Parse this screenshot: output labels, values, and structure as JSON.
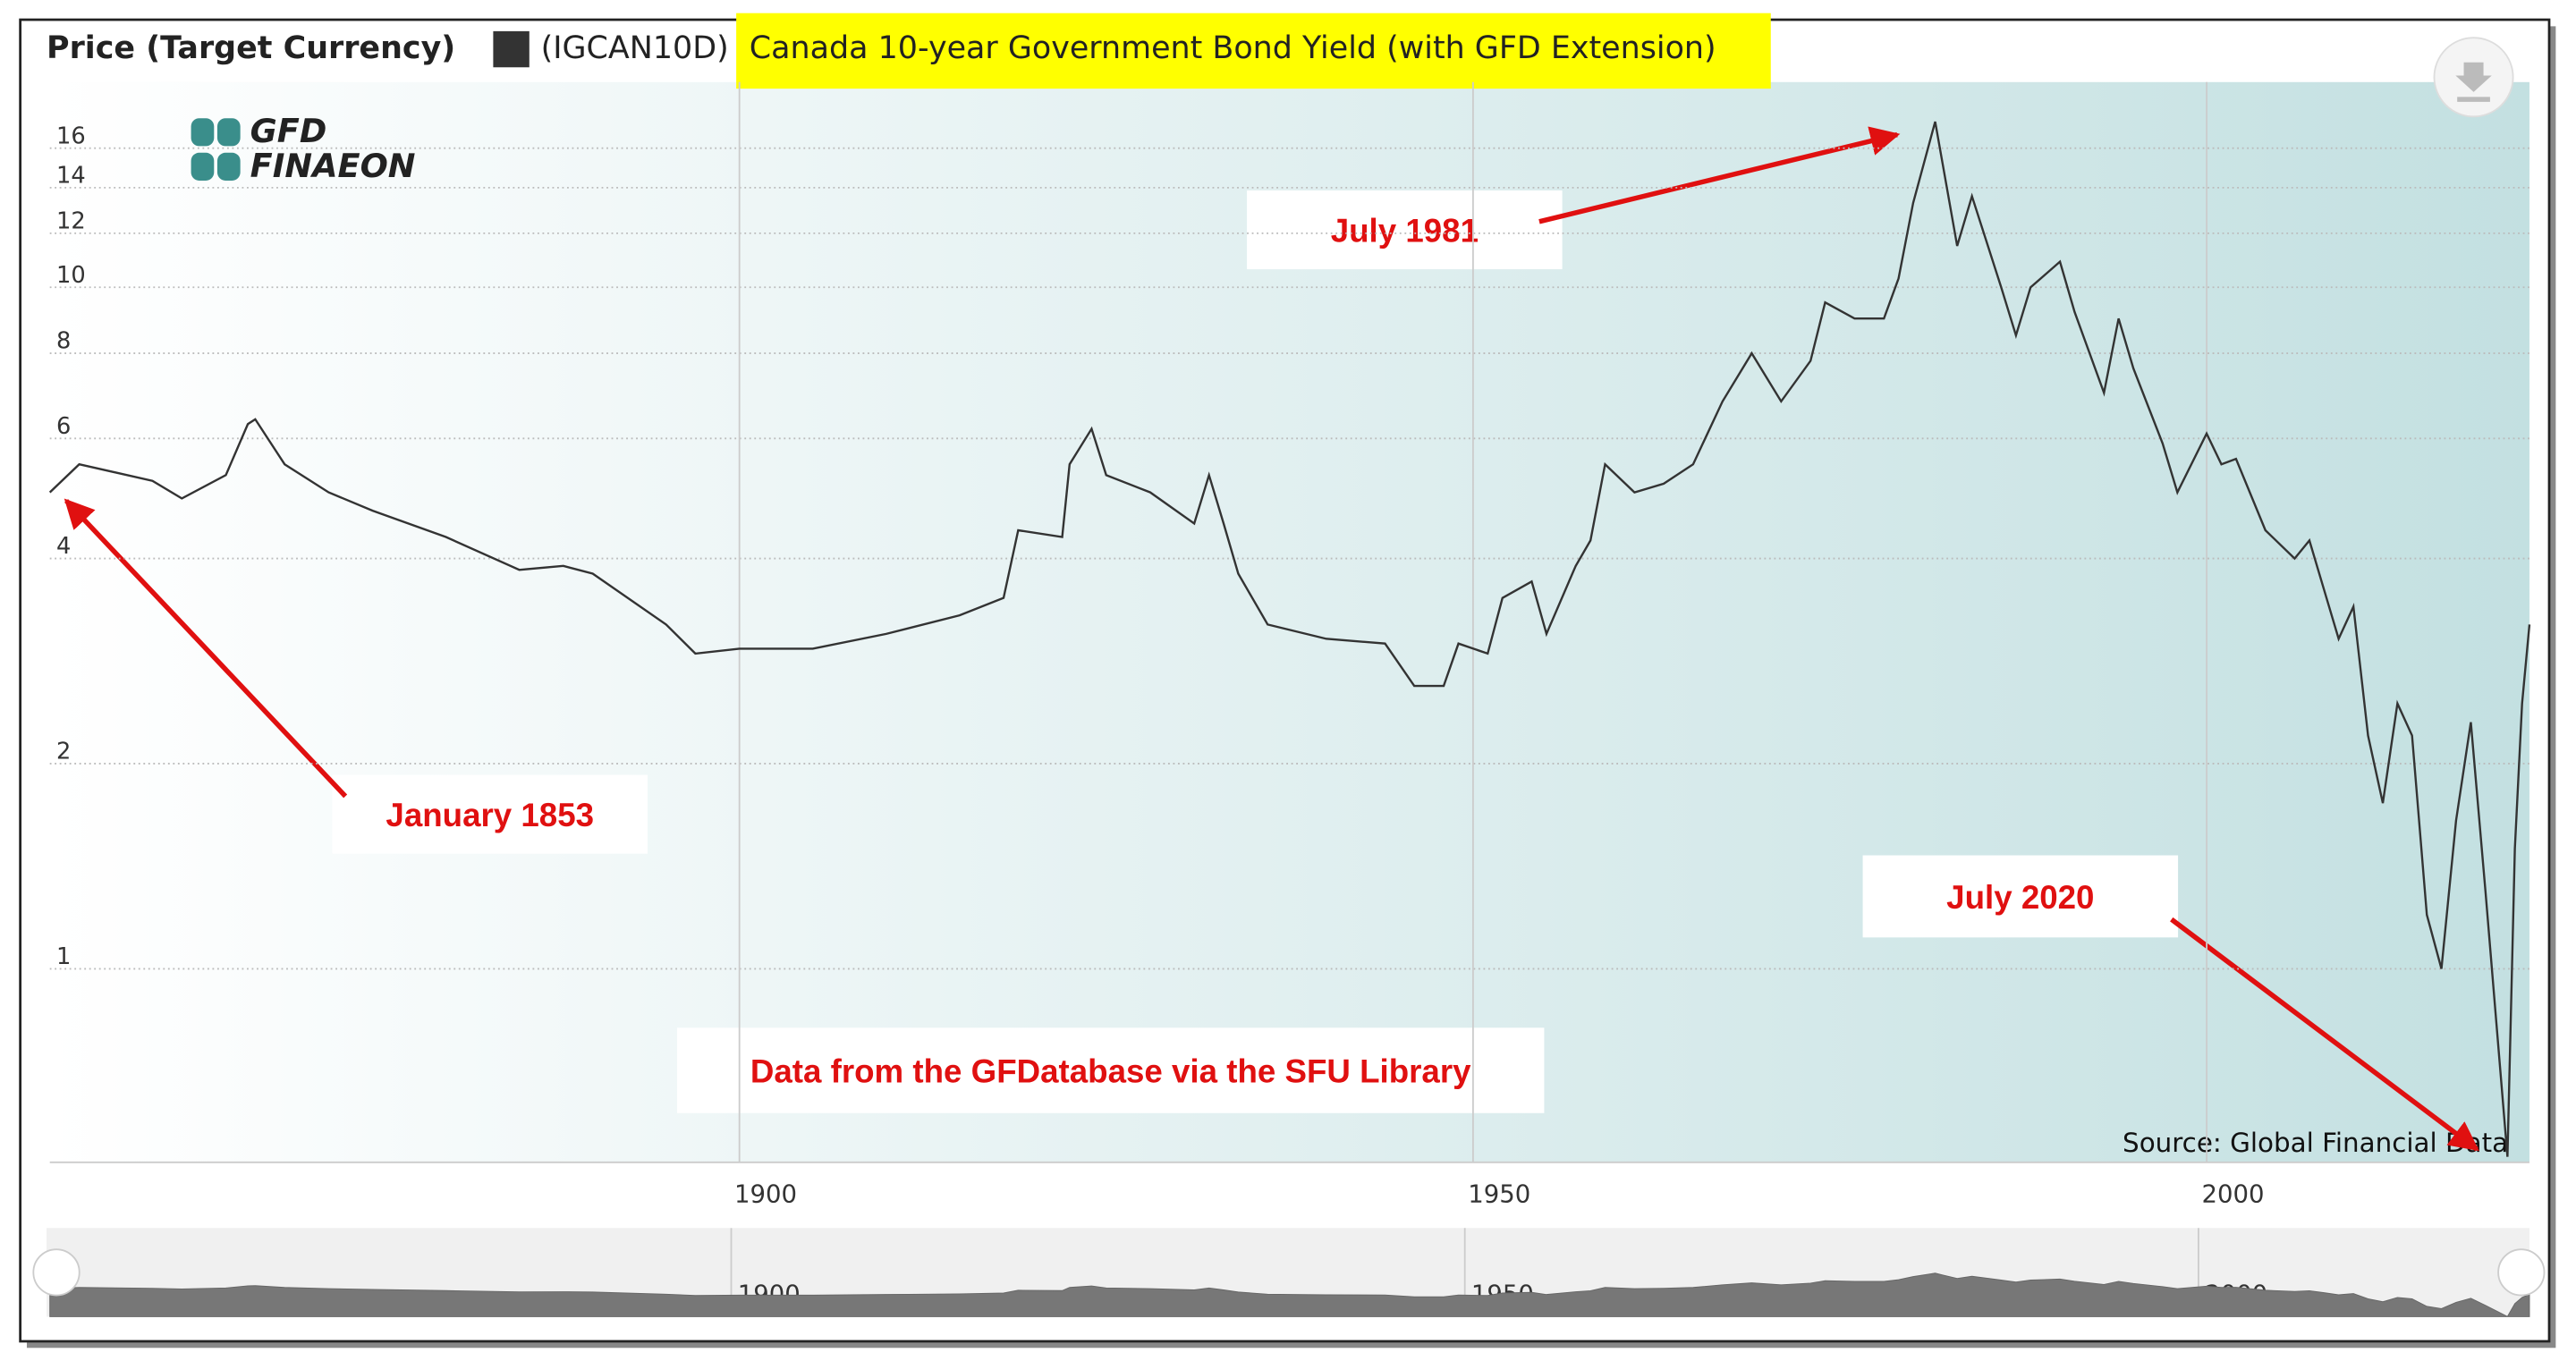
{
  "chart_data": {
    "type": "line",
    "y_label": "Price (Target Currency)",
    "ticker": "(IGCAN10D)",
    "logo": [
      "GFD",
      "FINAEON"
    ],
    "source": "Source: Global Financial Data",
    "annotations": [
      "January 1853",
      "July 1981",
      "July 2020",
      "Data from the GFDatabase via the SFU Library"
    ],
    "log_scale": true,
    "grid": true,
    "x": [
      1853,
      1855,
      1860,
      1862,
      1865,
      1866.5,
      1867,
      1869,
      1872,
      1875,
      1880,
      1885,
      1888,
      1890,
      1895,
      1897,
      1900,
      1905,
      1910,
      1915,
      1918,
      1919,
      1922,
      1922.5,
      1924,
      1925,
      1928,
      1931,
      1932,
      1933,
      1934,
      1936,
      1940,
      1944,
      1946,
      1948,
      1949,
      1951,
      1952,
      1954,
      1955,
      1957,
      1958,
      1959,
      1961,
      1963,
      1965,
      1967,
      1969,
      1971,
      1973,
      1974,
      1976,
      1978,
      1979,
      1980,
      1981.5,
      1982,
      1983,
      1984,
      1986,
      1987,
      1988,
      1990,
      1991,
      1993,
      1994,
      1995,
      1997,
      1998,
      2000,
      2001,
      2002,
      2004,
      2006,
      2007,
      2008,
      2009,
      2010,
      2011,
      2012,
      2013,
      2014,
      2015,
      2016,
      2017,
      2018,
      2019,
      2020.5,
      2021,
      2021.5,
      2022
    ],
    "series": [
      {
        "name": "Canada 10-year Government Bond Yield (with GFD Extension)",
        "color": "#333333",
        "values": [
          5.0,
          5.5,
          5.2,
          4.9,
          5.3,
          6.3,
          6.4,
          5.5,
          5.0,
          4.7,
          4.3,
          3.85,
          3.9,
          3.8,
          3.2,
          2.9,
          2.95,
          2.95,
          3.1,
          3.3,
          3.5,
          4.4,
          4.3,
          5.5,
          6.2,
          5.3,
          5.0,
          4.5,
          5.3,
          4.5,
          3.8,
          3.2,
          3.05,
          3.0,
          2.6,
          2.6,
          3.0,
          2.9,
          3.5,
          3.7,
          3.1,
          3.9,
          4.25,
          5.5,
          5.0,
          5.15,
          5.5,
          6.8,
          8.0,
          6.8,
          7.8,
          9.5,
          9.0,
          9.0,
          10.3,
          13.3,
          17.5,
          15.2,
          11.5,
          13.6,
          10.0,
          8.5,
          10.0,
          10.9,
          9.2,
          7.0,
          9.0,
          7.6,
          5.9,
          5.0,
          6.1,
          5.5,
          5.6,
          4.4,
          4.0,
          4.25,
          3.6,
          3.05,
          3.4,
          2.2,
          1.75,
          2.45,
          2.2,
          1.2,
          1.0,
          1.65,
          2.3,
          1.3,
          0.53,
          1.5,
          2.45,
          3.2
        ]
      }
    ],
    "xlim": [
      1853,
      2022
    ],
    "xticks": [
      1900,
      1950,
      2000
    ],
    "ylim": [
      0.52,
      20
    ],
    "yticks": [
      1,
      2,
      4,
      6,
      8,
      10,
      12,
      14,
      16
    ]
  }
}
